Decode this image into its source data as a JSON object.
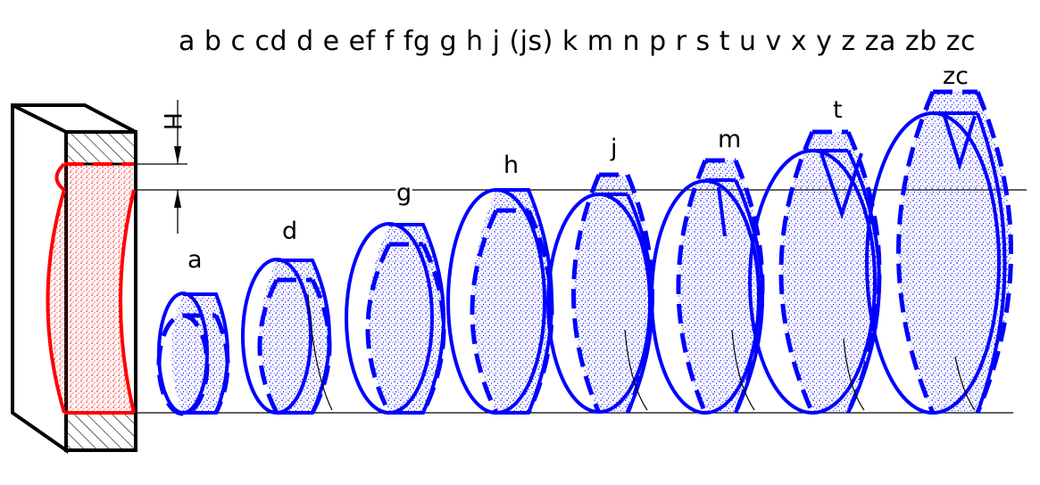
{
  "series_label": "a b c cd d e ef f fg g h j (js) k m n p r s t u v x y z za zb zc",
  "dimension_label": "H",
  "zero_line_label": "g",
  "labels": {
    "a": "a",
    "d": "d",
    "h": "h",
    "j": "j",
    "m": "m",
    "t": "t",
    "zc": "zc"
  },
  "colors": {
    "shaft": "#0000ff",
    "hole": "#ff0000",
    "outline": "#000000"
  }
}
